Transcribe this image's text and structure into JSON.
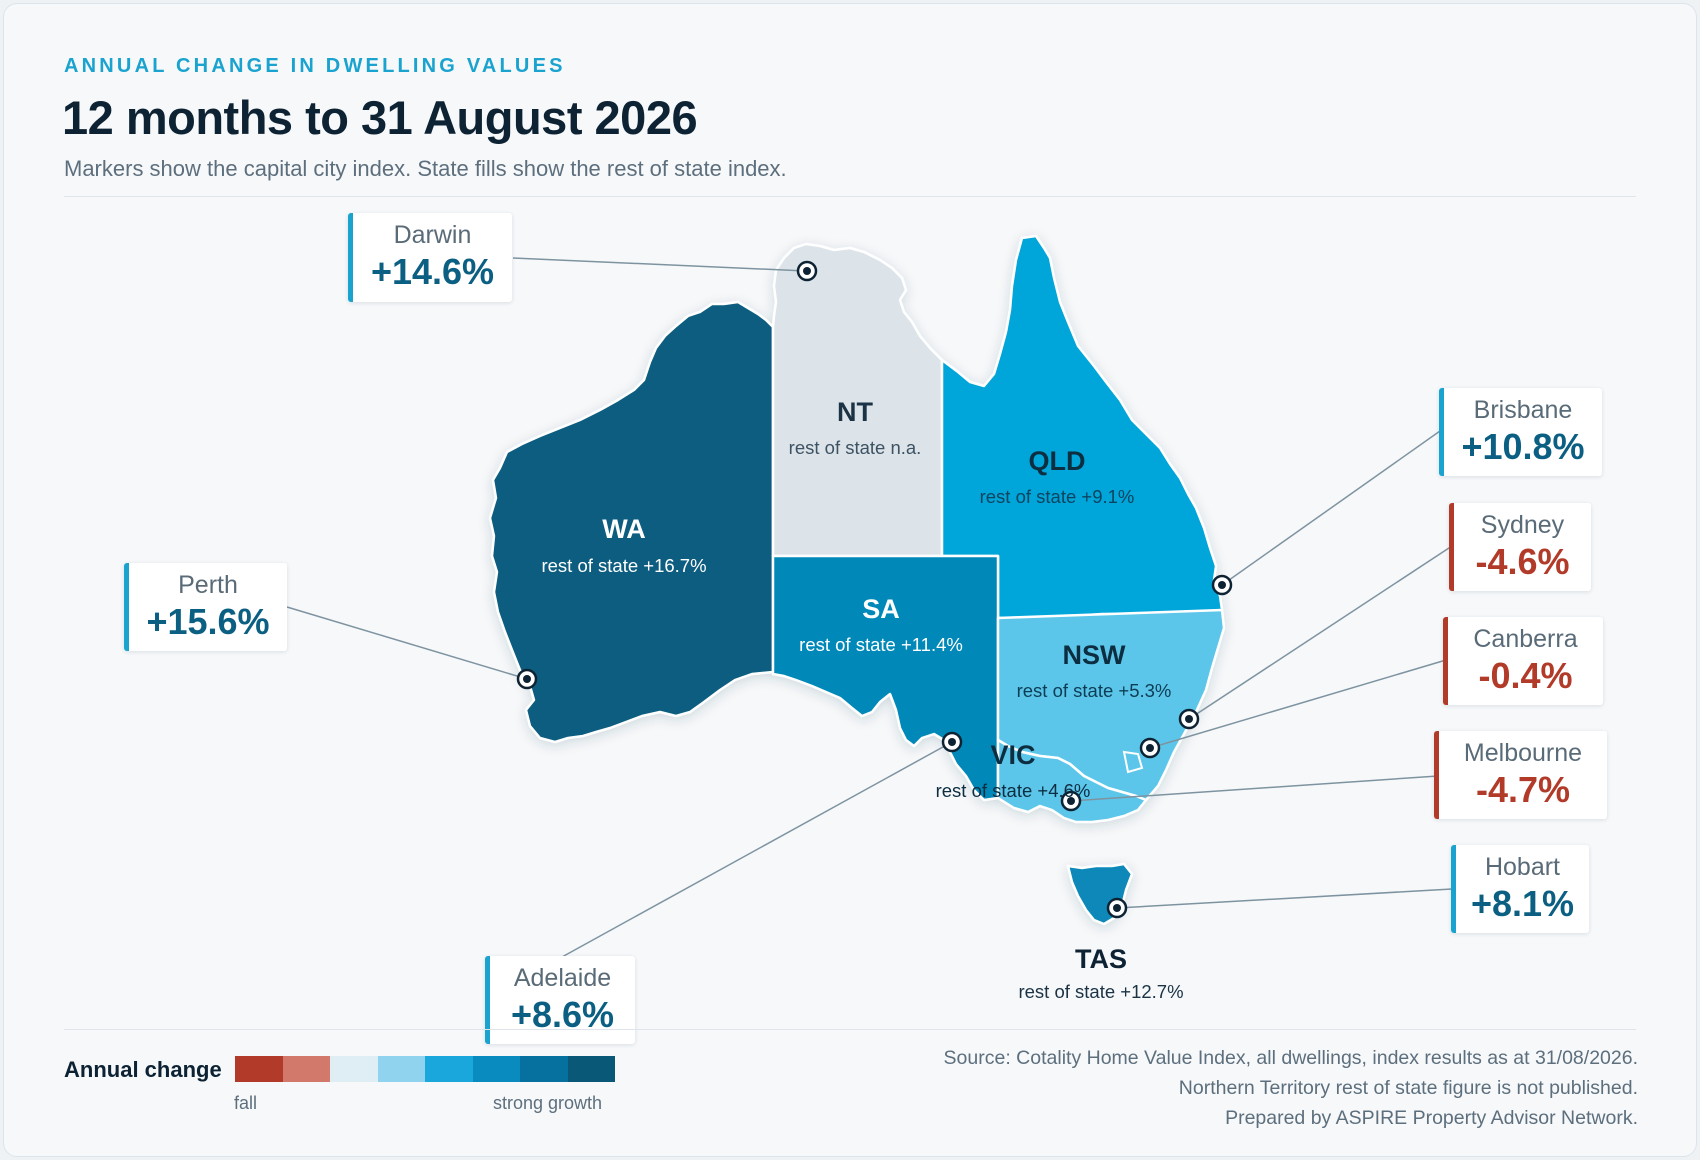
{
  "header": {
    "eyebrow": "ANNUAL CHANGE IN DWELLING VALUES",
    "title": "12 months to 31 August 2026",
    "subtitle": "Markers show the capital city index. State fills show the rest of state index."
  },
  "states": {
    "wa": {
      "name": "WA",
      "sub": "rest of state +16.7%",
      "value": 16.7,
      "fill": "#075d80"
    },
    "nt": {
      "name": "NT",
      "sub": "rest of state n.a.",
      "value": null,
      "fill": "#dce4ea"
    },
    "qld": {
      "name": "QLD",
      "sub": "rest of state +9.1%",
      "value": 9.1,
      "fill": "#04a5d9"
    },
    "sa": {
      "name": "SA",
      "sub": "rest of state +11.4%",
      "value": 11.4,
      "fill": "#0589b8"
    },
    "nsw": {
      "name": "NSW",
      "sub": "rest of state +5.3%",
      "value": 5.3,
      "fill": "#5cc6ea"
    },
    "vic": {
      "name": "VIC",
      "sub": "rest of state +4.6%",
      "value": 4.6,
      "fill": "#5cc6ea"
    },
    "tas": {
      "name": "TAS",
      "sub": "rest of state +12.7%",
      "value": 12.7,
      "fill": "#0888b8"
    }
  },
  "cities": {
    "darwin": {
      "name": "Darwin",
      "value": "+14.6%",
      "trend": "positive"
    },
    "perth": {
      "name": "Perth",
      "value": "+15.6%",
      "trend": "positive"
    },
    "adelaide": {
      "name": "Adelaide",
      "value": "+8.6%",
      "trend": "positive"
    },
    "brisbane": {
      "name": "Brisbane",
      "value": "+10.8%",
      "trend": "positive"
    },
    "sydney": {
      "name": "Sydney",
      "value": "-4.6%",
      "trend": "negative"
    },
    "canberra": {
      "name": "Canberra",
      "value": "-0.4%",
      "trend": "negative"
    },
    "melbourne": {
      "name": "Melbourne",
      "value": "-4.7%",
      "trend": "negative"
    },
    "hobart": {
      "name": "Hobart",
      "value": "+8.1%",
      "trend": "positive"
    }
  },
  "legend": {
    "title": "Annual change",
    "low_label": "fall",
    "high_label": "strong growth",
    "colors": [
      "#b23a29",
      "#d2796c",
      "#dfeef5",
      "#8fd3ef",
      "#1aa8dc",
      "#0a8bc0",
      "#06719e",
      "#0a5878"
    ]
  },
  "source": {
    "line1": "Source: Cotality Home Value Index, all dwellings, index results as at 31/08/2026.",
    "line2": "Northern Territory rest of state figure is not published.",
    "line3": "Prepared by ASPIRE Property Advisor Network."
  },
  "colors": {
    "accent": "#1aa3cf",
    "positive": "#0b5f82",
    "negative": "#b23a29",
    "background": "#f6f8fa"
  }
}
